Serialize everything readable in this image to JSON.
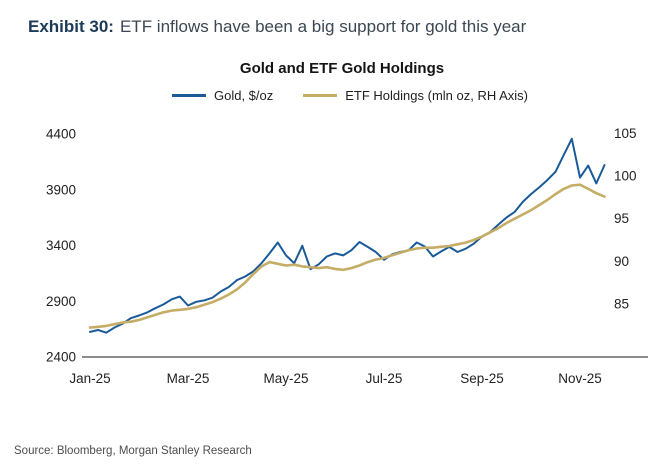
{
  "header": {
    "exhibit_label": "Exhibit 30:",
    "title": "ETF inflows have been a big support for gold this year"
  },
  "footer": {
    "source": "Source: Bloomberg, Morgan Stanley Research"
  },
  "colors": {
    "gold_line": "#1b5a99",
    "etf_line": "#c5ad66",
    "axis_line": "#8c8c8c"
  },
  "chart_data": {
    "type": "line",
    "title": "Gold and ETF Gold Holdings",
    "x_tick_labels": [
      "Jan-25",
      "Mar-25",
      "May-25",
      "Jul-25",
      "Sep-25",
      "Nov-25"
    ],
    "x_tick_months": [
      0,
      2,
      4,
      6,
      8,
      10
    ],
    "x_range_months": [
      0,
      10.5
    ],
    "left_axis": {
      "label": "Gold, $/oz",
      "ticks": [
        2400,
        2900,
        3400,
        3900,
        4400
      ],
      "range": [
        2400,
        4500
      ]
    },
    "right_axis": {
      "label": "ETF Holdings (mln oz, RH Axis)",
      "ticks": [
        85,
        90,
        95,
        100,
        105
      ],
      "range": [
        78.75,
        106.25
      ]
    },
    "series": [
      {
        "name": "Gold, $/oz",
        "axis": "left",
        "color": "#1b5a99",
        "values": [
          2625,
          2642,
          2618,
          2665,
          2700,
          2748,
          2772,
          2800,
          2838,
          2872,
          2918,
          2942,
          2862,
          2895,
          2908,
          2932,
          2988,
          3028,
          3090,
          3122,
          3168,
          3242,
          3332,
          3428,
          3312,
          3242,
          3398,
          3188,
          3232,
          3302,
          3330,
          3312,
          3358,
          3432,
          3388,
          3342,
          3272,
          3322,
          3342,
          3358,
          3428,
          3392,
          3302,
          3348,
          3388,
          3342,
          3372,
          3418,
          3482,
          3522,
          3588,
          3652,
          3702,
          3792,
          3862,
          3922,
          3988,
          4062,
          4212,
          4358,
          4010,
          4118,
          3958,
          4122
        ]
      },
      {
        "name": "ETF Holdings (mln oz, RH Axis)",
        "axis": "right",
        "color": "#c5ad66",
        "values": [
          82.2,
          82.3,
          82.4,
          82.6,
          82.8,
          82.9,
          83.1,
          83.4,
          83.7,
          84.0,
          84.2,
          84.3,
          84.4,
          84.6,
          84.9,
          85.2,
          85.6,
          86.1,
          86.7,
          87.5,
          88.5,
          89.4,
          89.9,
          89.7,
          89.5,
          89.6,
          89.4,
          89.3,
          89.2,
          89.3,
          89.1,
          89.0,
          89.2,
          89.5,
          89.9,
          90.2,
          90.4,
          90.7,
          91.0,
          91.3,
          91.5,
          91.6,
          91.6,
          91.7,
          91.8,
          92.0,
          92.2,
          92.5,
          92.9,
          93.4,
          93.9,
          94.5,
          95.0,
          95.5,
          96.0,
          96.6,
          97.2,
          97.9,
          98.5,
          98.9,
          99.0,
          98.5,
          98.0,
          97.6
        ]
      }
    ]
  }
}
